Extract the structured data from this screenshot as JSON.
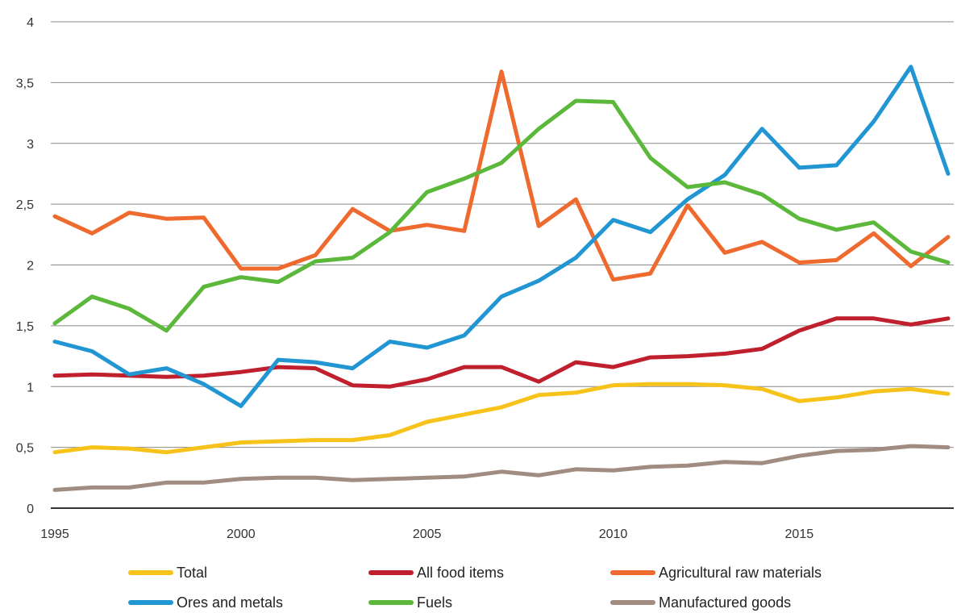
{
  "chart_data": {
    "type": "line",
    "title": "",
    "xlabel": "",
    "ylabel": "",
    "x": [
      1995,
      1996,
      1997,
      1998,
      1999,
      2000,
      2001,
      2002,
      2003,
      2004,
      2005,
      2006,
      2007,
      2008,
      2009,
      2010,
      2011,
      2012,
      2013,
      2014,
      2015,
      2016,
      2017,
      2018,
      2019
    ],
    "xlim": [
      1995,
      2019
    ],
    "ylim": [
      0,
      4
    ],
    "x_ticks": [
      {
        "value": 1995,
        "label": "1995"
      },
      {
        "value": 2000,
        "label": "2000"
      },
      {
        "value": 2005,
        "label": "2005"
      },
      {
        "value": 2010,
        "label": "2010"
      },
      {
        "value": 2015,
        "label": "2015"
      }
    ],
    "y_ticks": [
      {
        "value": 0,
        "label": "0"
      },
      {
        "value": 0.5,
        "label": "0,5"
      },
      {
        "value": 1,
        "label": "1"
      },
      {
        "value": 1.5,
        "label": "1,5"
      },
      {
        "value": 2,
        "label": "2"
      },
      {
        "value": 2.5,
        "label": "2,5"
      },
      {
        "value": 3,
        "label": "3"
      },
      {
        "value": 3.5,
        "label": "3,5"
      },
      {
        "value": 4,
        "label": "4"
      }
    ],
    "grid": true,
    "legend_position": "bottom",
    "series": [
      {
        "name": "Total",
        "color": "#f7c21a",
        "values": [
          0.46,
          0.5,
          0.49,
          0.46,
          0.5,
          0.54,
          0.55,
          0.56,
          0.56,
          0.6,
          0.71,
          0.77,
          0.83,
          0.93,
          0.95,
          1.01,
          1.02,
          1.02,
          1.01,
          0.98,
          0.88,
          0.91,
          0.96,
          0.98,
          0.94
        ]
      },
      {
        "name": "All food items",
        "color": "#c0202e",
        "values": [
          1.09,
          1.1,
          1.09,
          1.08,
          1.09,
          1.12,
          1.16,
          1.15,
          1.01,
          1.0,
          1.06,
          1.16,
          1.16,
          1.04,
          1.2,
          1.16,
          1.24,
          1.25,
          1.27,
          1.31,
          1.46,
          1.56,
          1.56,
          1.51,
          1.56
        ]
      },
      {
        "name": "Agricultural raw materials",
        "color": "#ef6a2e",
        "values": [
          2.4,
          2.26,
          2.43,
          2.38,
          2.39,
          1.97,
          1.97,
          2.08,
          2.46,
          2.28,
          2.33,
          2.28,
          3.59,
          2.32,
          2.54,
          1.88,
          1.93,
          2.49,
          2.1,
          2.19,
          2.02,
          2.04,
          2.26,
          1.99,
          2.23
        ]
      },
      {
        "name": "Ores and metals",
        "color": "#2196d3",
        "values": [
          1.37,
          1.29,
          1.1,
          1.15,
          1.02,
          0.84,
          1.22,
          1.2,
          1.15,
          1.37,
          1.32,
          1.42,
          1.74,
          1.87,
          2.06,
          2.37,
          2.27,
          2.54,
          2.74,
          3.12,
          2.8,
          2.82,
          3.18,
          3.63,
          2.75
        ]
      },
      {
        "name": "Fuels",
        "color": "#5cb83b",
        "values": [
          1.52,
          1.74,
          1.64,
          1.46,
          1.82,
          1.9,
          1.86,
          2.03,
          2.06,
          2.27,
          2.6,
          2.71,
          2.84,
          3.12,
          3.35,
          3.34,
          2.88,
          2.64,
          2.68,
          2.58,
          2.38,
          2.29,
          2.35,
          2.11,
          2.02
        ]
      },
      {
        "name": "Manufactured goods",
        "color": "#a08c80",
        "values": [
          0.15,
          0.17,
          0.17,
          0.21,
          0.21,
          0.24,
          0.25,
          0.25,
          0.23,
          0.24,
          0.25,
          0.26,
          0.3,
          0.27,
          0.32,
          0.31,
          0.34,
          0.35,
          0.38,
          0.37,
          0.43,
          0.47,
          0.48,
          0.51,
          0.5
        ]
      }
    ]
  }
}
